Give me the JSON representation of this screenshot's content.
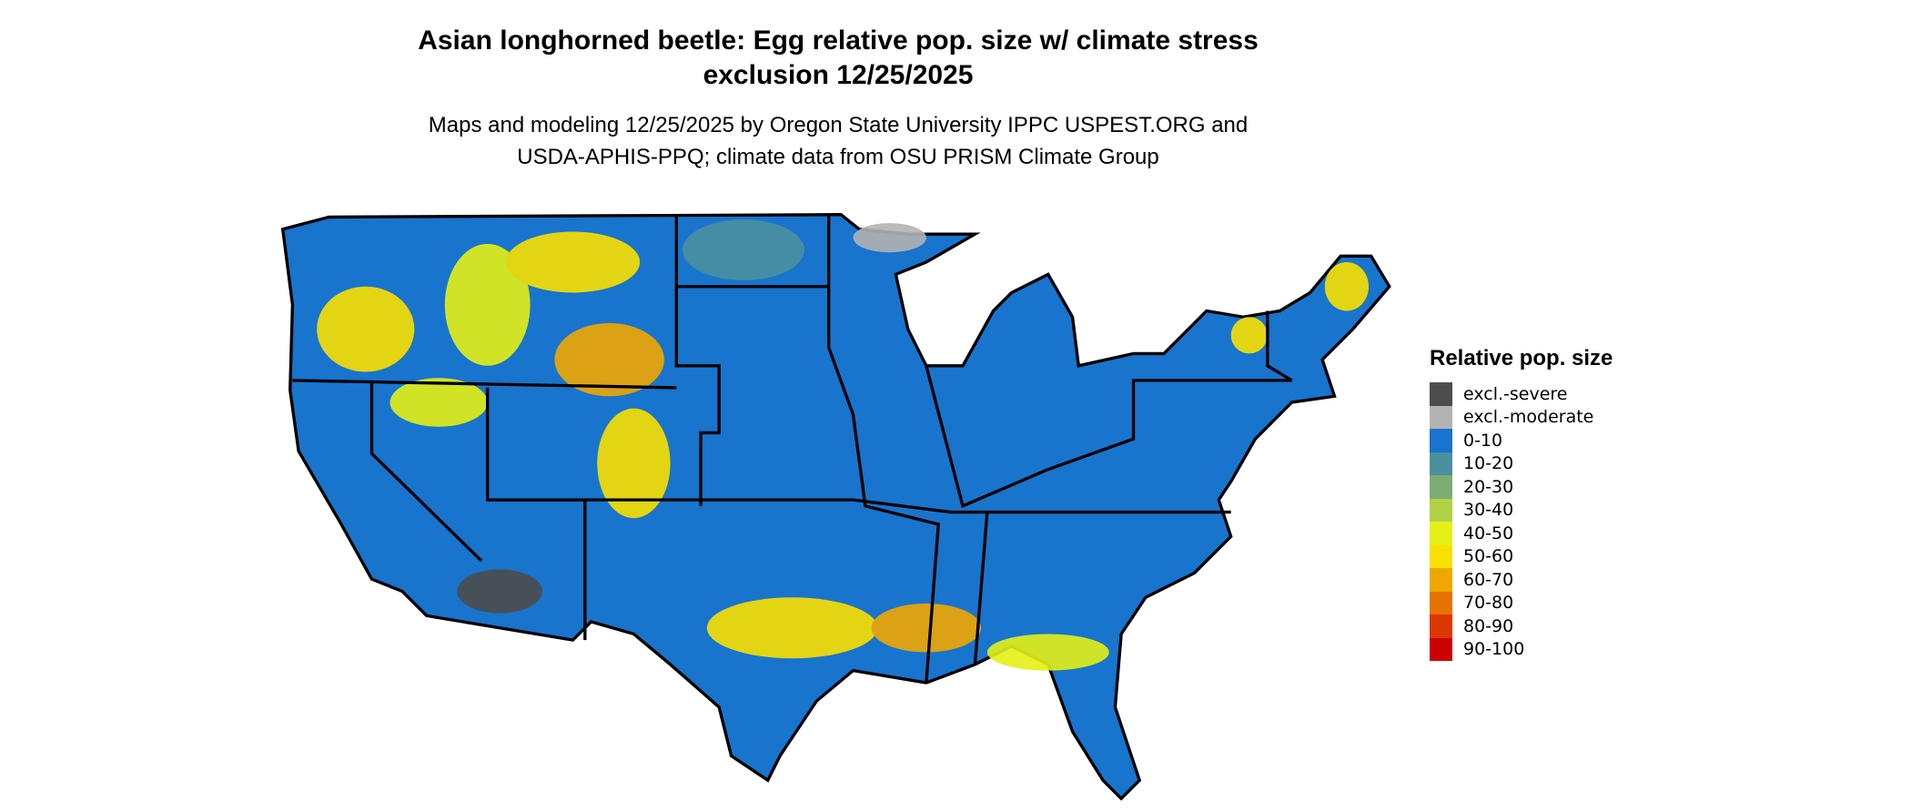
{
  "title_line1": "Asian longhorned beetle: Egg relative pop. size w/ climate stress",
  "title_line2": "exclusion 12/25/2025",
  "subtitle_line1": "Maps and modeling 12/25/2025 by Oregon State University IPPC USPEST.ORG and",
  "subtitle_line2": "USDA-APHIS-PPQ; climate data from OSU PRISM Climate Group",
  "legend": {
    "title": "Relative pop. size",
    "items": [
      {
        "label": "excl.-severe",
        "color": "#4d4d4d"
      },
      {
        "label": "excl.-moderate",
        "color": "#b3b3b3"
      },
      {
        "label": "0-10",
        "color": "#1874cd"
      },
      {
        "label": "10-20",
        "color": "#4a90a0"
      },
      {
        "label": "20-30",
        "color": "#7cae73"
      },
      {
        "label": "30-40",
        "color": "#b2d147"
      },
      {
        "label": "40-50",
        "color": "#e5f016"
      },
      {
        "label": "50-60",
        "color": "#f9e000"
      },
      {
        "label": "60-70",
        "color": "#f0a800"
      },
      {
        "label": "70-80",
        "color": "#e67300"
      },
      {
        "label": "80-90",
        "color": "#dc3700"
      },
      {
        "label": "90-100",
        "color": "#cd0000"
      }
    ]
  }
}
